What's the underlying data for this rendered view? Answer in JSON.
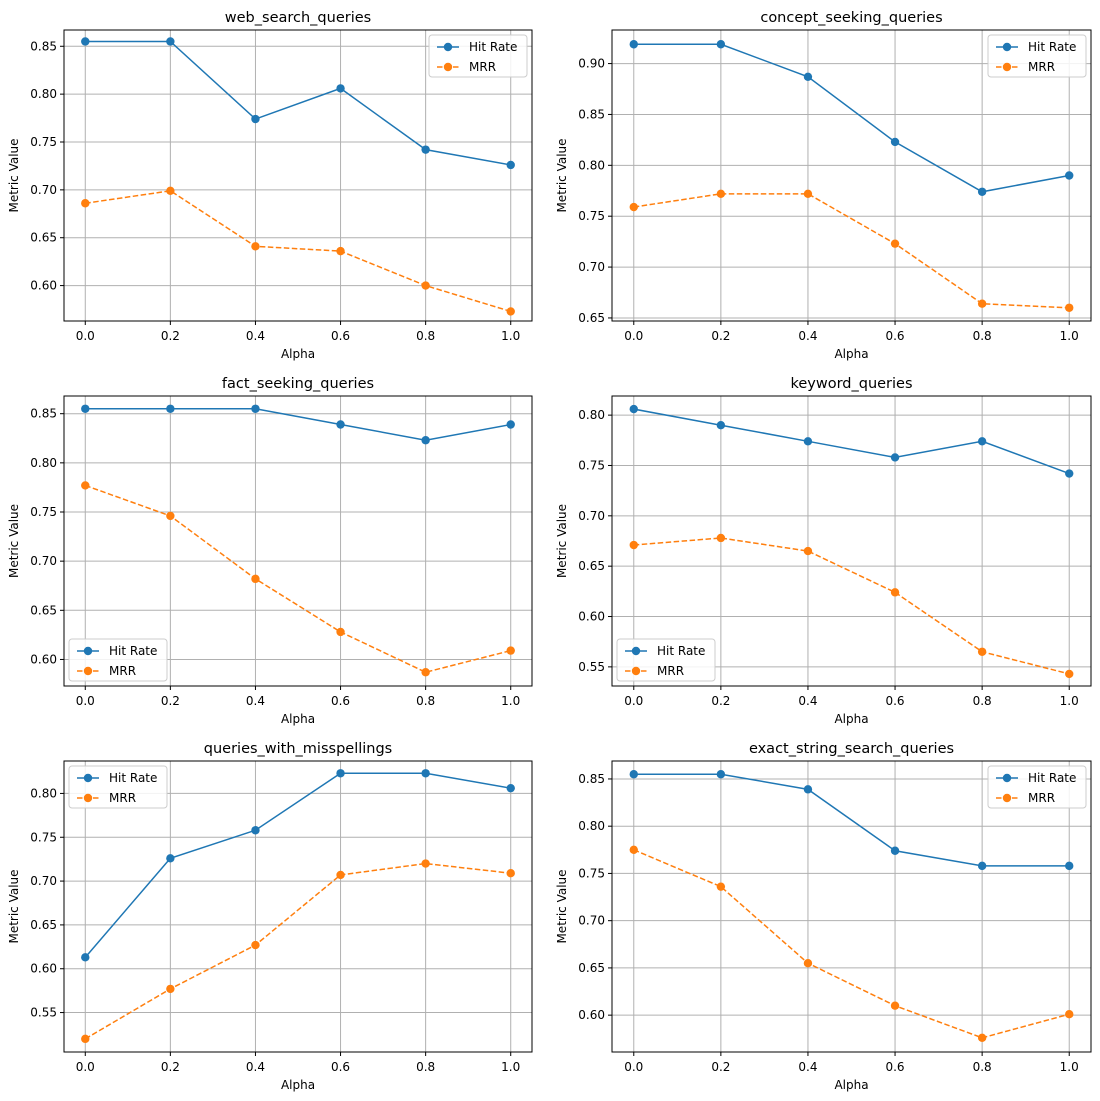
{
  "chart_data": [
    {
      "type": "line",
      "title": "web_search_queries",
      "xlabel": "Alpha",
      "ylabel": "Metric Value",
      "x": [
        0.0,
        0.2,
        0.4,
        0.6,
        0.8,
        1.0
      ],
      "xticks": [
        "0.0",
        "0.2",
        "0.4",
        "0.6",
        "0.8",
        "1.0"
      ],
      "yticks": [
        0.6,
        0.65,
        0.7,
        0.75,
        0.8,
        0.85
      ],
      "ytick_labels": [
        "0.60",
        "0.65",
        "0.70",
        "0.75",
        "0.80",
        "0.85"
      ],
      "ylim": [
        0.563,
        0.867
      ],
      "legend": "upper right",
      "grid": true,
      "series": [
        {
          "name": "Hit Rate",
          "color": "#1f77b4",
          "linestyle": "solid",
          "values": [
            0.855,
            0.855,
            0.774,
            0.806,
            0.742,
            0.726
          ]
        },
        {
          "name": "MRR",
          "color": "#ff7f0e",
          "linestyle": "dashed",
          "values": [
            0.686,
            0.699,
            0.641,
            0.636,
            0.6,
            0.573
          ]
        }
      ]
    },
    {
      "type": "line",
      "title": "concept_seeking_queries",
      "xlabel": "Alpha",
      "ylabel": "Metric Value",
      "x": [
        0.0,
        0.2,
        0.4,
        0.6,
        0.8,
        1.0
      ],
      "xticks": [
        "0.0",
        "0.2",
        "0.4",
        "0.6",
        "0.8",
        "1.0"
      ],
      "yticks": [
        0.65,
        0.7,
        0.75,
        0.8,
        0.85,
        0.9
      ],
      "ytick_labels": [
        "0.65",
        "0.70",
        "0.75",
        "0.80",
        "0.85",
        "0.90"
      ],
      "ylim": [
        0.647,
        0.933
      ],
      "legend": "upper right",
      "grid": true,
      "series": [
        {
          "name": "Hit Rate",
          "color": "#1f77b4",
          "linestyle": "solid",
          "values": [
            0.919,
            0.919,
            0.887,
            0.823,
            0.774,
            0.79
          ]
        },
        {
          "name": "MRR",
          "color": "#ff7f0e",
          "linestyle": "dashed",
          "values": [
            0.759,
            0.772,
            0.772,
            0.723,
            0.664,
            0.66
          ]
        }
      ]
    },
    {
      "type": "line",
      "title": "fact_seeking_queries",
      "xlabel": "Alpha",
      "ylabel": "Metric Value",
      "x": [
        0.0,
        0.2,
        0.4,
        0.6,
        0.8,
        1.0
      ],
      "xticks": [
        "0.0",
        "0.2",
        "0.4",
        "0.6",
        "0.8",
        "1.0"
      ],
      "yticks": [
        0.6,
        0.65,
        0.7,
        0.75,
        0.8,
        0.85
      ],
      "ytick_labels": [
        "0.60",
        "0.65",
        "0.70",
        "0.75",
        "0.80",
        "0.85"
      ],
      "ylim": [
        0.573,
        0.868
      ],
      "legend": "lower left",
      "grid": true,
      "series": [
        {
          "name": "Hit Rate",
          "color": "#1f77b4",
          "linestyle": "solid",
          "values": [
            0.855,
            0.855,
            0.855,
            0.839,
            0.823,
            0.839
          ]
        },
        {
          "name": "MRR",
          "color": "#ff7f0e",
          "linestyle": "dashed",
          "values": [
            0.777,
            0.746,
            0.682,
            0.628,
            0.587,
            0.609
          ]
        }
      ]
    },
    {
      "type": "line",
      "title": "keyword_queries",
      "xlabel": "Alpha",
      "ylabel": "Metric Value",
      "x": [
        0.0,
        0.2,
        0.4,
        0.6,
        0.8,
        1.0
      ],
      "xticks": [
        "0.0",
        "0.2",
        "0.4",
        "0.6",
        "0.8",
        "1.0"
      ],
      "yticks": [
        0.55,
        0.6,
        0.65,
        0.7,
        0.75,
        0.8
      ],
      "ytick_labels": [
        "0.55",
        "0.60",
        "0.65",
        "0.70",
        "0.75",
        "0.80"
      ],
      "ylim": [
        0.531,
        0.819
      ],
      "legend": "lower left",
      "grid": true,
      "series": [
        {
          "name": "Hit Rate",
          "color": "#1f77b4",
          "linestyle": "solid",
          "values": [
            0.806,
            0.79,
            0.774,
            0.758,
            0.774,
            0.742
          ]
        },
        {
          "name": "MRR",
          "color": "#ff7f0e",
          "linestyle": "dashed",
          "values": [
            0.671,
            0.678,
            0.665,
            0.624,
            0.565,
            0.543
          ]
        }
      ]
    },
    {
      "type": "line",
      "title": "queries_with_misspellings",
      "xlabel": "Alpha",
      "ylabel": "Metric Value",
      "x": [
        0.0,
        0.2,
        0.4,
        0.6,
        0.8,
        1.0
      ],
      "xticks": [
        "0.0",
        "0.2",
        "0.4",
        "0.6",
        "0.8",
        "1.0"
      ],
      "yticks": [
        0.55,
        0.6,
        0.65,
        0.7,
        0.75,
        0.8
      ],
      "ytick_labels": [
        "0.55",
        "0.60",
        "0.65",
        "0.70",
        "0.75",
        "0.80"
      ],
      "ylim": [
        0.505,
        0.837
      ],
      "legend": "upper left",
      "grid": true,
      "series": [
        {
          "name": "Hit Rate",
          "color": "#1f77b4",
          "linestyle": "solid",
          "values": [
            0.613,
            0.726,
            0.758,
            0.823,
            0.823,
            0.806
          ]
        },
        {
          "name": "MRR",
          "color": "#ff7f0e",
          "linestyle": "dashed",
          "values": [
            0.52,
            0.577,
            0.627,
            0.707,
            0.72,
            0.709
          ]
        }
      ]
    },
    {
      "type": "line",
      "title": "exact_string_search_queries",
      "xlabel": "Alpha",
      "ylabel": "Metric Value",
      "x": [
        0.0,
        0.2,
        0.4,
        0.6,
        0.8,
        1.0
      ],
      "xticks": [
        "0.0",
        "0.2",
        "0.4",
        "0.6",
        "0.8",
        "1.0"
      ],
      "yticks": [
        0.6,
        0.65,
        0.7,
        0.75,
        0.8,
        0.85
      ],
      "ytick_labels": [
        "0.60",
        "0.65",
        "0.70",
        "0.75",
        "0.80",
        "0.85"
      ],
      "ylim": [
        0.561,
        0.869
      ],
      "legend": "upper right",
      "grid": true,
      "series": [
        {
          "name": "Hit Rate",
          "color": "#1f77b4",
          "linestyle": "solid",
          "values": [
            0.855,
            0.855,
            0.839,
            0.774,
            0.758,
            0.758
          ]
        },
        {
          "name": "MRR",
          "color": "#ff7f0e",
          "linestyle": "dashed",
          "values": [
            0.775,
            0.736,
            0.655,
            0.61,
            0.576,
            0.601
          ]
        }
      ]
    }
  ]
}
